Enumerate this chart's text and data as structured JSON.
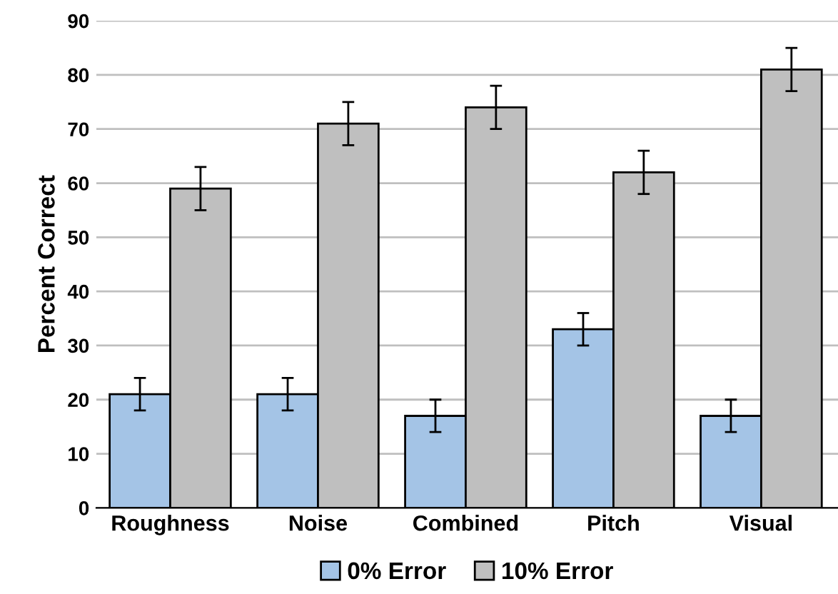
{
  "chart_data": {
    "type": "bar",
    "ylabel": "Percent Correct",
    "categories": [
      "Roughness",
      "Noise",
      "Combined",
      "Pitch",
      "Visual"
    ],
    "series": [
      {
        "name": "0% Error",
        "color": "#a4c4e6",
        "values": [
          21,
          21,
          17,
          33,
          17
        ],
        "errors": [
          3,
          3,
          3,
          3,
          3
        ]
      },
      {
        "name": "10% Error",
        "color": "#bfbfbf",
        "values": [
          59,
          71,
          74,
          62,
          81
        ],
        "errors": [
          4,
          4,
          4,
          4,
          4
        ]
      }
    ],
    "ylim": [
      0,
      90
    ],
    "yticks": [
      0,
      10,
      20,
      30,
      40,
      50,
      60,
      70,
      80,
      90
    ],
    "grid": "y",
    "legend": "bottom"
  }
}
